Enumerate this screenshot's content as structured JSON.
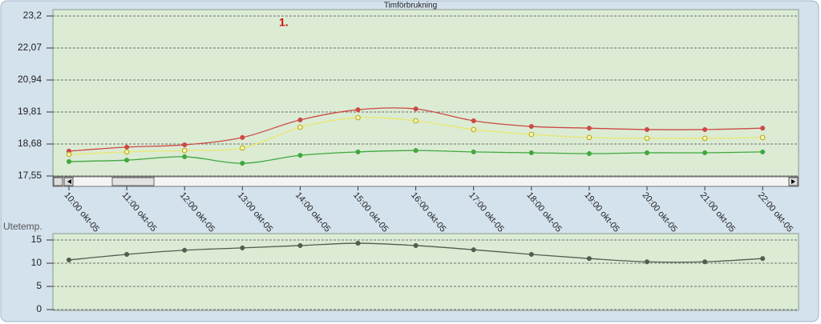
{
  "chart_data": [
    {
      "type": "line",
      "title": "Timförbrukning",
      "annotation": "1.",
      "categories": [
        "10:00 okt-05",
        "11:00 okt-05",
        "12:00 okt-05",
        "13:00 okt-05",
        "14:00 okt-05",
        "15:00 okt-05",
        "16:00 okt-05",
        "17:00 okt-05",
        "18:00 okt-05",
        "19:00 okt-05",
        "20:00 okt-05",
        "21:00 okt-05",
        "22:00 okt-05"
      ],
      "series": [
        {
          "color": "#cc4a45",
          "marker": "filled",
          "values": [
            18.43,
            18.57,
            18.65,
            18.91,
            19.53,
            19.89,
            19.92,
            19.5,
            19.3,
            19.24,
            19.19,
            19.19,
            19.24
          ]
        },
        {
          "color": "#e8e870",
          "marker": "hollow",
          "values": [
            18.31,
            18.4,
            18.45,
            18.54,
            19.27,
            19.61,
            19.5,
            19.19,
            19.02,
            18.91,
            18.88,
            18.88,
            18.91
          ]
        },
        {
          "color": "#3fa83f",
          "marker": "filled",
          "values": [
            18.06,
            18.11,
            18.23,
            18.0,
            18.28,
            18.4,
            18.45,
            18.4,
            18.37,
            18.34,
            18.37,
            18.37,
            18.4
          ]
        }
      ],
      "ylim": [
        17.55,
        23.2
      ],
      "yticks": [
        {
          "value": 17.55,
          "label": "17,55"
        },
        {
          "value": 18.68,
          "label": "18,68"
        },
        {
          "value": 19.81,
          "label": "19,81"
        },
        {
          "value": 20.94,
          "label": "20,94"
        },
        {
          "value": 22.07,
          "label": "22,07"
        },
        {
          "value": 23.2,
          "label": "23,2"
        }
      ],
      "grid": true
    },
    {
      "type": "line",
      "ylabel": "Utetemp.",
      "series": [
        {
          "color": "#4f5f4f",
          "marker": "filled",
          "values": [
            10.7,
            11.9,
            12.8,
            13.3,
            13.8,
            14.3,
            13.8,
            12.9,
            11.9,
            11.0,
            10.3,
            10.3,
            11.0
          ]
        }
      ],
      "ylim": [
        0,
        15
      ],
      "yticks": [
        0,
        5,
        10,
        15
      ],
      "grid": true
    }
  ]
}
